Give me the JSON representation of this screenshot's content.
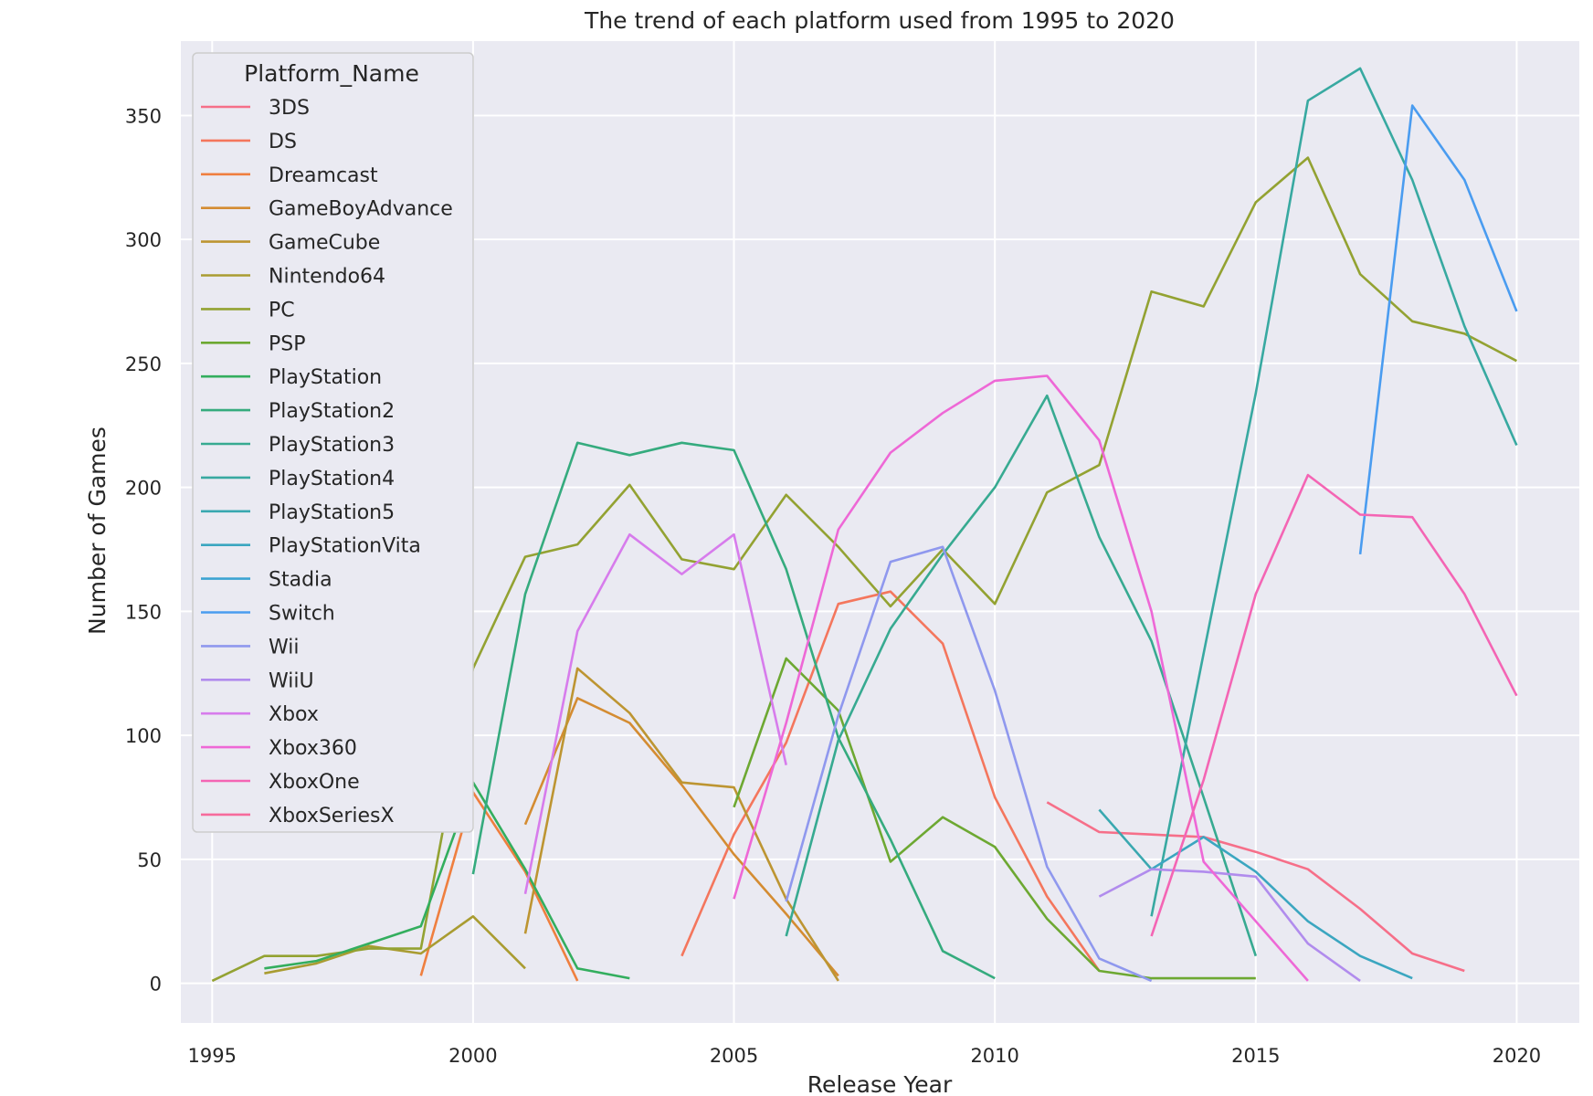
{
  "chart_data": {
    "type": "line",
    "title": "The trend of each platform used from 1995 to 2020",
    "xlabel": "Release Year",
    "ylabel": "Number of Games",
    "xlim": [
      1994.4,
      2021.2
    ],
    "ylim": [
      -16,
      380
    ],
    "xticks": [
      1995,
      2000,
      2005,
      2010,
      2015,
      2020
    ],
    "yticks": [
      0,
      50,
      100,
      150,
      200,
      250,
      300,
      350
    ],
    "grid": true,
    "background": "#eaeaf2",
    "legend": {
      "title": "Platform_Name",
      "placement": "upper-left"
    },
    "series": [
      {
        "name": "3DS",
        "color": "#f66f89",
        "points": [
          [
            2011,
            73
          ],
          [
            2012,
            61
          ],
          [
            2013,
            60
          ],
          [
            2014,
            59
          ],
          [
            2015,
            53
          ],
          [
            2016,
            46
          ],
          [
            2017,
            30
          ],
          [
            2018,
            12
          ],
          [
            2019,
            5
          ]
        ]
      },
      {
        "name": "DS",
        "color": "#f4765d",
        "points": [
          [
            2004,
            11
          ],
          [
            2005,
            60
          ],
          [
            2006,
            97
          ],
          [
            2007,
            153
          ],
          [
            2008,
            158
          ],
          [
            2009,
            137
          ],
          [
            2010,
            75
          ],
          [
            2011,
            35
          ],
          [
            2012,
            5
          ]
        ]
      },
      {
        "name": "Dreamcast",
        "color": "#ef7f3f",
        "points": [
          [
            1999,
            3
          ],
          [
            2000,
            77
          ],
          [
            2001,
            45
          ],
          [
            2002,
            1
          ]
        ]
      },
      {
        "name": "GameBoyAdvance",
        "color": "#d48c32",
        "points": [
          [
            2001,
            64
          ],
          [
            2002,
            115
          ],
          [
            2003,
            105
          ],
          [
            2004,
            80
          ],
          [
            2005,
            52
          ],
          [
            2006,
            28
          ],
          [
            2007,
            3
          ]
        ]
      },
      {
        "name": "GameCube",
        "color": "#bd9532",
        "points": [
          [
            2001,
            20
          ],
          [
            2002,
            127
          ],
          [
            2003,
            109
          ],
          [
            2004,
            81
          ],
          [
            2005,
            79
          ],
          [
            2006,
            34
          ],
          [
            2007,
            1
          ]
        ]
      },
      {
        "name": "Nintendo64",
        "color": "#a99c31",
        "points": [
          [
            1996,
            4
          ],
          [
            1997,
            8
          ],
          [
            1998,
            15
          ],
          [
            1999,
            12
          ],
          [
            2000,
            27
          ],
          [
            2001,
            6
          ]
        ]
      },
      {
        "name": "PC",
        "color": "#93a232",
        "points": [
          [
            1995,
            1
          ],
          [
            1996,
            11
          ],
          [
            1997,
            11
          ],
          [
            1998,
            14
          ],
          [
            1999,
            14
          ],
          [
            2000,
            127
          ],
          [
            2001,
            172
          ],
          [
            2002,
            177
          ],
          [
            2003,
            201
          ],
          [
            2004,
            171
          ],
          [
            2005,
            167
          ],
          [
            2006,
            197
          ],
          [
            2007,
            176
          ],
          [
            2008,
            152
          ],
          [
            2009,
            175
          ],
          [
            2010,
            153
          ],
          [
            2011,
            198
          ],
          [
            2012,
            209
          ],
          [
            2013,
            279
          ],
          [
            2014,
            273
          ],
          [
            2015,
            315
          ],
          [
            2016,
            333
          ],
          [
            2017,
            286
          ],
          [
            2018,
            267
          ],
          [
            2019,
            262
          ],
          [
            2020,
            251
          ]
        ]
      },
      {
        "name": "PSP",
        "color": "#6da832",
        "points": [
          [
            2005,
            71
          ],
          [
            2006,
            131
          ],
          [
            2007,
            110
          ],
          [
            2008,
            49
          ],
          [
            2009,
            67
          ],
          [
            2010,
            55
          ],
          [
            2011,
            26
          ],
          [
            2012,
            5
          ],
          [
            2013,
            2
          ],
          [
            2014,
            2
          ],
          [
            2015,
            2
          ]
        ]
      },
      {
        "name": "PlayStation",
        "color": "#33ae5e",
        "points": [
          [
            1996,
            6
          ],
          [
            1997,
            9
          ],
          [
            1998,
            16
          ],
          [
            1999,
            23
          ],
          [
            2000,
            81
          ],
          [
            2001,
            46
          ],
          [
            2002,
            6
          ],
          [
            2003,
            2
          ]
        ]
      },
      {
        "name": "PlayStation2",
        "color": "#35ab7e",
        "points": [
          [
            2000,
            44
          ],
          [
            2001,
            157
          ],
          [
            2002,
            218
          ],
          [
            2003,
            213
          ],
          [
            2004,
            218
          ],
          [
            2005,
            215
          ],
          [
            2006,
            167
          ],
          [
            2007,
            99
          ],
          [
            2008,
            58
          ],
          [
            2009,
            13
          ],
          [
            2010,
            2
          ]
        ]
      },
      {
        "name": "PlayStation3",
        "color": "#37aa91",
        "points": [
          [
            2006,
            19
          ],
          [
            2007,
            98
          ],
          [
            2008,
            143
          ],
          [
            2009,
            173
          ],
          [
            2010,
            200
          ],
          [
            2011,
            237
          ],
          [
            2012,
            180
          ],
          [
            2013,
            138
          ],
          [
            2014,
            75
          ],
          [
            2015,
            11
          ]
        ]
      },
      {
        "name": "PlayStation4",
        "color": "#38a9a1",
        "points": [
          [
            2013,
            27
          ],
          [
            2014,
            133
          ],
          [
            2015,
            238
          ],
          [
            2016,
            356
          ],
          [
            2017,
            369
          ],
          [
            2018,
            324
          ],
          [
            2019,
            265
          ],
          [
            2020,
            217
          ]
        ]
      },
      {
        "name": "PlayStation5",
        "color": "#39a8b0",
        "points": [
          [
            2012,
            70
          ],
          [
            2013,
            46
          ]
        ]
      },
      {
        "name": "PlayStationVita",
        "color": "#3ba6c0",
        "points": [
          [
            2013,
            46
          ],
          [
            2014,
            59
          ],
          [
            2015,
            45
          ],
          [
            2016,
            25
          ],
          [
            2017,
            11
          ],
          [
            2018,
            2
          ]
        ]
      },
      {
        "name": "Stadia",
        "color": "#3ca3d2",
        "points": []
      },
      {
        "name": "Switch",
        "color": "#4a9cf0",
        "points": [
          [
            2017,
            173
          ],
          [
            2018,
            354
          ],
          [
            2019,
            324
          ],
          [
            2020,
            271
          ]
        ]
      },
      {
        "name": "Wii",
        "color": "#8f98ee",
        "points": [
          [
            2006,
            33
          ],
          [
            2007,
            108
          ],
          [
            2008,
            170
          ],
          [
            2009,
            176
          ],
          [
            2010,
            118
          ],
          [
            2011,
            47
          ],
          [
            2012,
            10
          ],
          [
            2013,
            1
          ]
        ]
      },
      {
        "name": "WiiU",
        "color": "#b18ced",
        "points": [
          [
            2012,
            35
          ],
          [
            2013,
            46
          ],
          [
            2014,
            45
          ],
          [
            2015,
            43
          ],
          [
            2016,
            16
          ],
          [
            2017,
            1
          ]
        ]
      },
      {
        "name": "Xbox",
        "color": "#d77cec",
        "points": [
          [
            2001,
            36
          ],
          [
            2002,
            142
          ],
          [
            2003,
            181
          ],
          [
            2004,
            165
          ],
          [
            2005,
            181
          ],
          [
            2006,
            88
          ]
        ]
      },
      {
        "name": "Xbox360",
        "color": "#ee68d6",
        "points": [
          [
            2005,
            34
          ],
          [
            2006,
            105
          ],
          [
            2007,
            183
          ],
          [
            2008,
            214
          ],
          [
            2009,
            230
          ],
          [
            2010,
            243
          ],
          [
            2011,
            245
          ],
          [
            2012,
            219
          ],
          [
            2013,
            150
          ],
          [
            2014,
            49
          ],
          [
            2015,
            25
          ],
          [
            2016,
            1
          ]
        ]
      },
      {
        "name": "XboxOne",
        "color": "#f465b4",
        "points": [
          [
            2013,
            19
          ],
          [
            2014,
            82
          ],
          [
            2015,
            157
          ],
          [
            2016,
            205
          ],
          [
            2017,
            189
          ],
          [
            2018,
            188
          ],
          [
            2019,
            157
          ],
          [
            2020,
            116
          ]
        ]
      },
      {
        "name": "XboxSeriesX",
        "color": "#f66b9c",
        "points": []
      }
    ]
  }
}
